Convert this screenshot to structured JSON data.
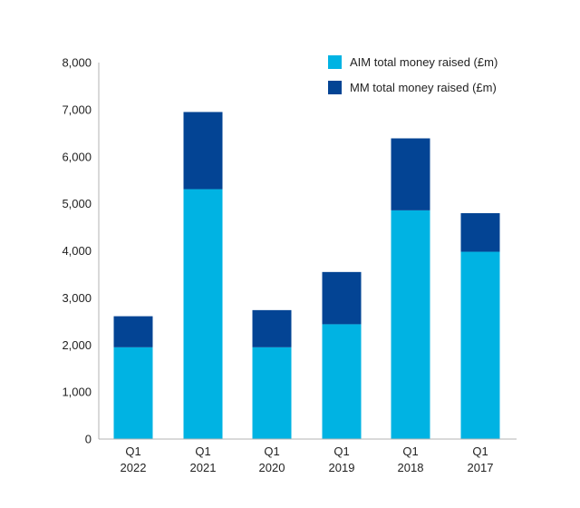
{
  "chart_data": {
    "type": "bar",
    "stacked": true,
    "categories": [
      {
        "line1": "Q1",
        "line2": "2022"
      },
      {
        "line1": "Q1",
        "line2": "2021"
      },
      {
        "line1": "Q1",
        "line2": "2020"
      },
      {
        "line1": "Q1",
        "line2": "2019"
      },
      {
        "line1": "Q1",
        "line2": "2018"
      },
      {
        "line1": "Q1",
        "line2": "2017"
      }
    ],
    "series": [
      {
        "name": "AIM total money raised (£m)",
        "color": "#00b3e3",
        "values": [
          1950,
          5310,
          1950,
          2440,
          4860,
          3980
        ]
      },
      {
        "name": "MM total money raised (£m)",
        "color": "#034494",
        "values": [
          660,
          1640,
          790,
          1110,
          1530,
          820
        ]
      }
    ],
    "ylim": [
      0,
      8000
    ],
    "yticks": [
      "0",
      "1,000",
      "2,000",
      "3,000",
      "4,000",
      "5,000",
      "6,000",
      "7,000",
      "8,000"
    ],
    "ytick_values": [
      0,
      1000,
      2000,
      3000,
      4000,
      5000,
      6000,
      7000,
      8000
    ],
    "grid": false,
    "legend_position": "top-right"
  }
}
